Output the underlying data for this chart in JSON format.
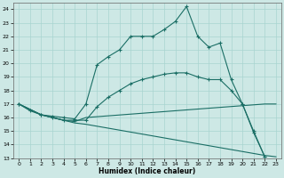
{
  "xlabel": "Humidex (Indice chaleur)",
  "bg_color": "#cde8e5",
  "grid_color": "#a8d4d0",
  "line_color": "#1a6e65",
  "xlim": [
    -0.5,
    23.5
  ],
  "ylim": [
    13,
    24.5
  ],
  "yticks": [
    13,
    14,
    15,
    16,
    17,
    18,
    19,
    20,
    21,
    22,
    23,
    24
  ],
  "xticks": [
    0,
    1,
    2,
    3,
    4,
    5,
    6,
    7,
    8,
    9,
    10,
    11,
    12,
    13,
    14,
    15,
    16,
    17,
    18,
    19,
    20,
    21,
    22,
    23
  ],
  "series": [
    {
      "x": [
        0,
        1,
        2,
        3,
        4,
        5,
        6,
        7,
        8,
        9,
        10,
        11,
        12,
        13,
        14,
        15,
        16,
        17,
        18,
        19,
        20,
        21,
        22
      ],
      "y": [
        17.0,
        16.5,
        16.2,
        16.1,
        16.0,
        15.9,
        17.0,
        19.9,
        20.5,
        21.0,
        22.0,
        22.0,
        22.0,
        22.5,
        23.1,
        24.2,
        22.0,
        21.2,
        21.5,
        18.8,
        17.0,
        14.9,
        13.1
      ],
      "marker": true
    },
    {
      "x": [
        0,
        2,
        3,
        4,
        5,
        6,
        7,
        8,
        9,
        10,
        11,
        12,
        13,
        14,
        15,
        16,
        17,
        18,
        19,
        20,
        21,
        22
      ],
      "y": [
        17.0,
        16.2,
        16.0,
        15.8,
        15.8,
        15.8,
        16.8,
        17.5,
        18.0,
        18.5,
        18.8,
        19.0,
        19.2,
        19.3,
        19.3,
        19.0,
        18.8,
        18.8,
        18.0,
        17.0,
        15.0,
        13.1
      ],
      "marker": true
    },
    {
      "x": [
        0,
        2,
        3,
        4,
        5,
        6,
        22,
        23
      ],
      "y": [
        17.0,
        16.2,
        16.0,
        15.8,
        15.7,
        16.0,
        17.0,
        17.0
      ],
      "marker": false
    },
    {
      "x": [
        0,
        2,
        3,
        4,
        5,
        6,
        22,
        23
      ],
      "y": [
        17.0,
        16.2,
        16.0,
        15.8,
        15.6,
        15.5,
        13.2,
        13.1
      ],
      "marker": false
    }
  ]
}
